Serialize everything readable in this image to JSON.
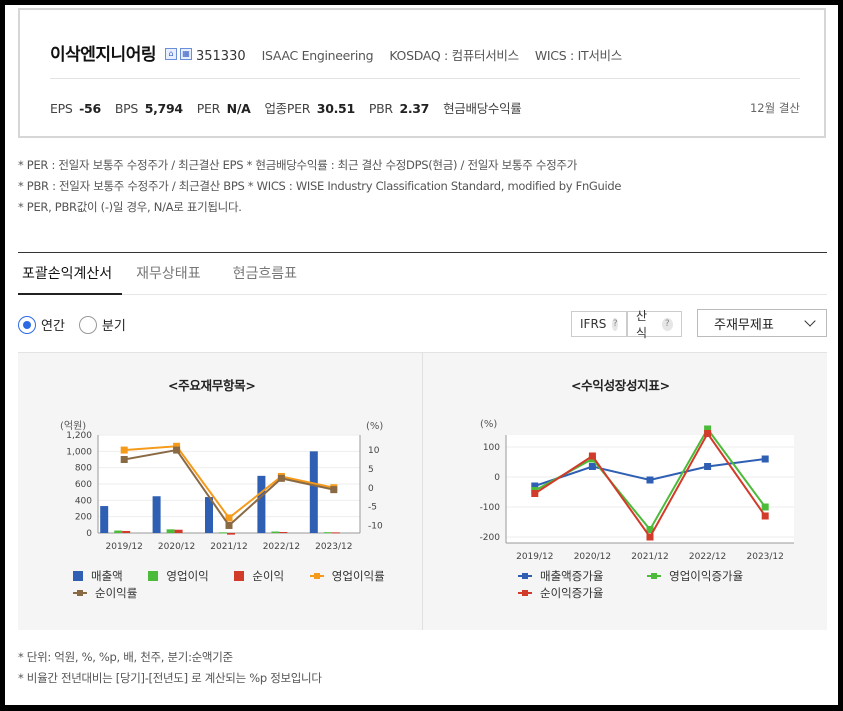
{
  "company": {
    "name": "이삭엔지니어링",
    "code": "351330",
    "english_name": "ISAAC Engineering",
    "market": "KOSDAQ : 컴퓨터서비스",
    "wics": "WICS : IT서비스"
  },
  "metrics": {
    "eps_label": "EPS",
    "eps_value": "-56",
    "bps_label": "BPS",
    "bps_value": "5,794",
    "per_label": "PER",
    "per_value": "N/A",
    "industry_per_label": "업종PER",
    "industry_per_value": "30.51",
    "pbr_label": "PBR",
    "pbr_value": "2.37",
    "dividend_label": "현금배당수익률",
    "settlement": "12월 결산"
  },
  "notes": [
    "* PER : 전일자 보통주 수정주가 / 최근결산 EPS * 현금배당수익률 : 최근 결산 수정DPS(현금) / 전일자 보통주 수정주가",
    "* PBR : 전일자 보통주 수정주가 / 최근결산 BPS * WICS : WISE Industry Classification Standard, modified by FnGuide",
    "* PER, PBR값이 (-)일 경우, N/A로 표기됩니다."
  ],
  "tabs": [
    "포괄손익계산서",
    "재무상태표",
    "현금흐름표"
  ],
  "period": {
    "annual": "연간",
    "quarter": "분기"
  },
  "controls": {
    "ifrs": "IFRS",
    "ifrs_help": "?",
    "calc": "산식",
    "calc_help": "?",
    "select_value": "주재무제표"
  },
  "colors": {
    "revenue": "#2f5fb3",
    "op_profit": "#4cbb3a",
    "net_profit": "#d23a2a",
    "op_margin": "#f59a1a",
    "net_margin": "#8a6a45"
  },
  "chart_data": [
    {
      "type": "bar",
      "title": "<주요재무항목>",
      "y_unit_left": "(억원)",
      "y_unit_right": "(%)",
      "categories": [
        "2019/12",
        "2020/12",
        "2021/12",
        "2022/12",
        "2023/12"
      ],
      "ylim_left": [
        0,
        1200
      ],
      "yticks_left": [
        "0",
        "200",
        "400",
        "600",
        "800",
        "1,000",
        "1,200"
      ],
      "ylim_right": [
        -12,
        14
      ],
      "yticks_right": [
        "-10",
        "-5",
        "0",
        "5",
        "10"
      ],
      "series": [
        {
          "name": "매출액",
          "kind": "bar",
          "axis": "left",
          "values": [
            330,
            450,
            440,
            700,
            1000
          ]
        },
        {
          "name": "영업이익",
          "kind": "bar",
          "axis": "left",
          "values": [
            30,
            45,
            8,
            18,
            10
          ]
        },
        {
          "name": "순이익",
          "kind": "bar",
          "axis": "left",
          "values": [
            25,
            40,
            -20,
            12,
            8
          ]
        },
        {
          "name": "영업이익률",
          "kind": "line",
          "axis": "right",
          "values": [
            10,
            11,
            -8,
            3,
            0
          ]
        },
        {
          "name": "순이익률",
          "kind": "line",
          "axis": "right",
          "values": [
            7.5,
            10,
            -10,
            2.5,
            -0.5
          ]
        }
      ]
    },
    {
      "type": "line",
      "title": "<수익성장성지표>",
      "y_unit": "(%)",
      "categories": [
        "2019/12",
        "2020/12",
        "2021/12",
        "2022/12",
        "2023/12"
      ],
      "ylim": [
        -220,
        140
      ],
      "yticks": [
        "-200",
        "-100",
        "0",
        "100"
      ],
      "series": [
        {
          "name": "매출액증가율",
          "values": [
            -30,
            35,
            -10,
            35,
            60
          ]
        },
        {
          "name": "영업이익증가율",
          "values": [
            -45,
            60,
            -175,
            160,
            -100
          ]
        },
        {
          "name": "순이익증가율",
          "values": [
            -55,
            70,
            -200,
            145,
            -130
          ]
        }
      ]
    }
  ],
  "footer": [
    "* 단위: 억원, %, %p, 배, 천주, 분기:순액기준",
    "* 비율간 전년대비는 [당기]-[전년도] 로 계산되는 %p 정보입니다"
  ]
}
